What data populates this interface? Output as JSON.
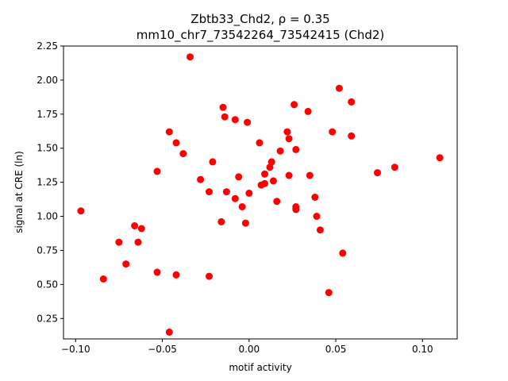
{
  "chart_data": {
    "type": "scatter",
    "title_line1": "Zbtb33_Chd2, ρ = 0.35",
    "title_line2": "mm10_chr7_73542264_73542415 (Chd2)",
    "xlabel": "motif activity",
    "ylabel": "signal at CRE (ln)",
    "xlim": [
      -0.107,
      0.12
    ],
    "ylim": [
      0.1,
      2.25
    ],
    "xticks": [
      -0.1,
      -0.05,
      0.0,
      0.05,
      0.1
    ],
    "xtick_labels": [
      "−0.10",
      "−0.05",
      "0.00",
      "0.05",
      "0.10"
    ],
    "yticks": [
      0.25,
      0.5,
      0.75,
      1.0,
      1.25,
      1.5,
      1.75,
      2.0,
      2.25
    ],
    "ytick_labels": [
      "0.25",
      "0.50",
      "0.75",
      "1.00",
      "1.25",
      "1.50",
      "1.75",
      "2.00",
      "2.25"
    ],
    "grid": false,
    "marker_color": "#ff0000",
    "points": [
      {
        "x": -0.097,
        "y": 1.04
      },
      {
        "x": -0.084,
        "y": 0.54
      },
      {
        "x": -0.075,
        "y": 0.81
      },
      {
        "x": -0.071,
        "y": 0.65
      },
      {
        "x": -0.066,
        "y": 0.93
      },
      {
        "x": -0.064,
        "y": 0.81
      },
      {
        "x": -0.062,
        "y": 0.91
      },
      {
        "x": -0.053,
        "y": 1.33
      },
      {
        "x": -0.053,
        "y": 0.59
      },
      {
        "x": -0.046,
        "y": 1.62
      },
      {
        "x": -0.046,
        "y": 0.15
      },
      {
        "x": -0.042,
        "y": 1.54
      },
      {
        "x": -0.042,
        "y": 0.57
      },
      {
        "x": -0.038,
        "y": 1.46
      },
      {
        "x": -0.034,
        "y": 2.17
      },
      {
        "x": -0.028,
        "y": 1.27
      },
      {
        "x": -0.023,
        "y": 1.18
      },
      {
        "x": -0.023,
        "y": 0.56
      },
      {
        "x": -0.021,
        "y": 1.4
      },
      {
        "x": -0.016,
        "y": 0.96
      },
      {
        "x": -0.015,
        "y": 1.8
      },
      {
        "x": -0.014,
        "y": 1.73
      },
      {
        "x": -0.013,
        "y": 1.18
      },
      {
        "x": -0.008,
        "y": 1.71
      },
      {
        "x": -0.008,
        "y": 1.13
      },
      {
        "x": -0.006,
        "y": 1.29
      },
      {
        "x": -0.004,
        "y": 1.07
      },
      {
        "x": -0.002,
        "y": 0.95
      },
      {
        "x": -0.001,
        "y": 1.69
      },
      {
        "x": 0.0,
        "y": 1.17
      },
      {
        "x": 0.006,
        "y": 1.54
      },
      {
        "x": 0.007,
        "y": 1.23
      },
      {
        "x": 0.009,
        "y": 1.24
      },
      {
        "x": 0.009,
        "y": 1.31
      },
      {
        "x": 0.012,
        "y": 1.36
      },
      {
        "x": 0.013,
        "y": 1.4
      },
      {
        "x": 0.014,
        "y": 1.26
      },
      {
        "x": 0.016,
        "y": 1.11
      },
      {
        "x": 0.018,
        "y": 1.48
      },
      {
        "x": 0.022,
        "y": 1.62
      },
      {
        "x": 0.023,
        "y": 1.57
      },
      {
        "x": 0.023,
        "y": 1.3
      },
      {
        "x": 0.026,
        "y": 1.82
      },
      {
        "x": 0.027,
        "y": 1.49
      },
      {
        "x": 0.027,
        "y": 1.07
      },
      {
        "x": 0.027,
        "y": 1.05
      },
      {
        "x": 0.034,
        "y": 1.77
      },
      {
        "x": 0.035,
        "y": 1.3
      },
      {
        "x": 0.038,
        "y": 1.14
      },
      {
        "x": 0.039,
        "y": 1.0
      },
      {
        "x": 0.041,
        "y": 0.9
      },
      {
        "x": 0.046,
        "y": 0.44
      },
      {
        "x": 0.048,
        "y": 1.62
      },
      {
        "x": 0.052,
        "y": 1.94
      },
      {
        "x": 0.054,
        "y": 0.73
      },
      {
        "x": 0.059,
        "y": 1.84
      },
      {
        "x": 0.059,
        "y": 1.59
      },
      {
        "x": 0.074,
        "y": 1.32
      },
      {
        "x": 0.084,
        "y": 1.36
      },
      {
        "x": 0.11,
        "y": 1.43
      }
    ]
  }
}
